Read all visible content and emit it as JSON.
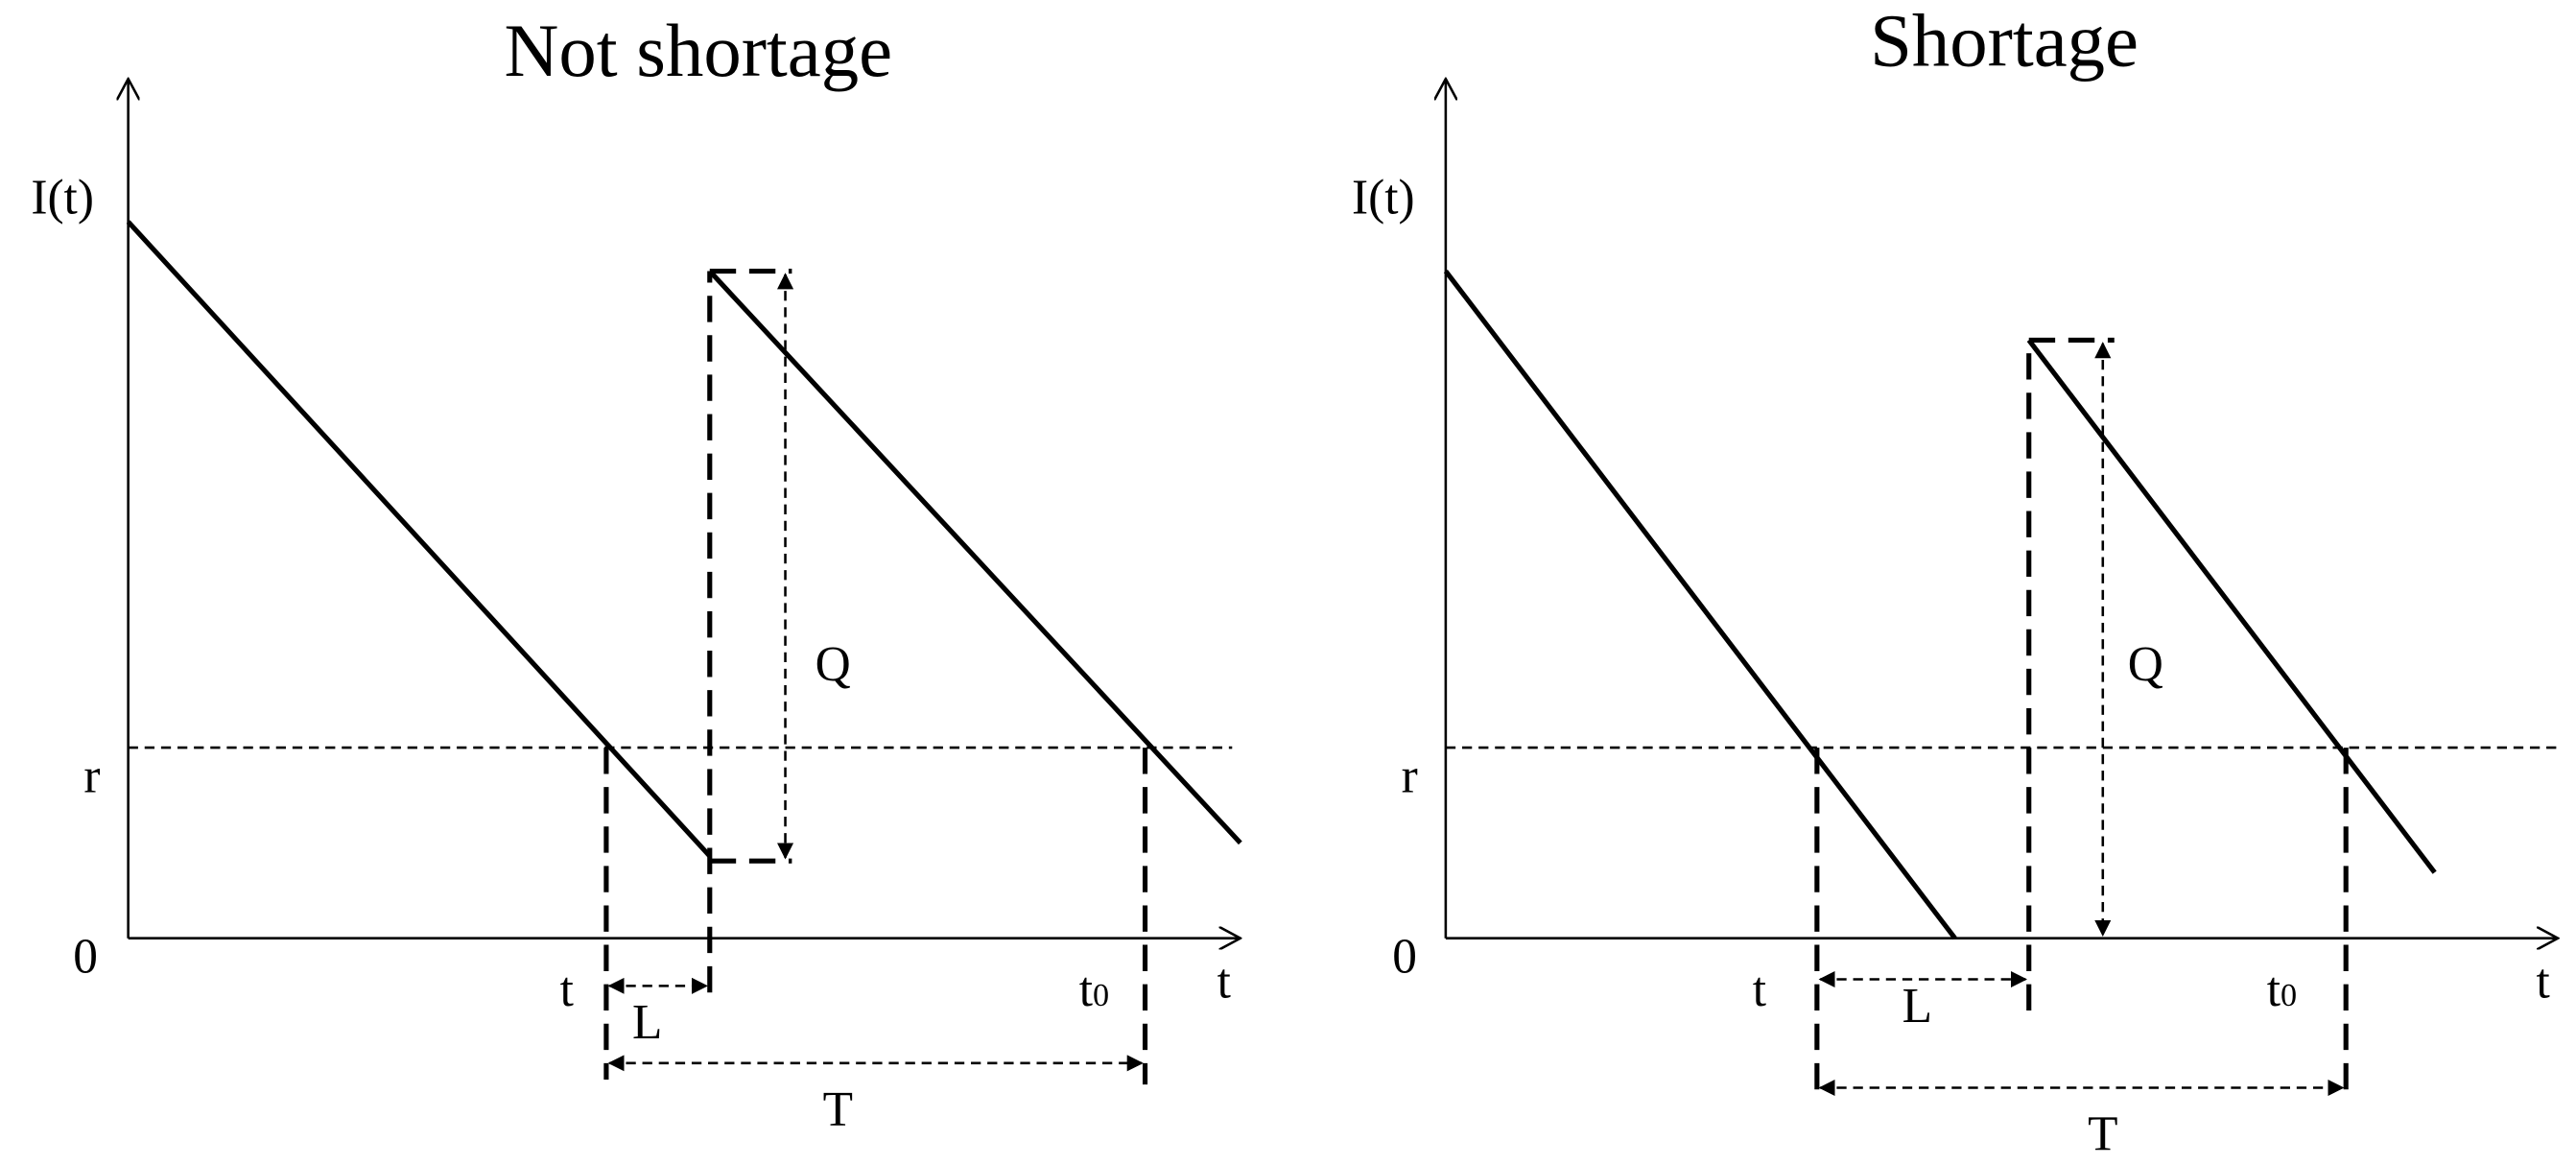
{
  "panels": [
    {
      "title": "Not shortage",
      "y_axis": "I(t)",
      "x_axis": "t",
      "origin": "0",
      "reorder": "r",
      "order_time": "t",
      "arrival_time": {
        "main": "t",
        "sub": "0"
      },
      "lead_time": "L",
      "cycle": "T",
      "quantity": "Q"
    },
    {
      "title": "Shortage",
      "y_axis": "I(t)",
      "x_axis": "t",
      "origin": "0",
      "reorder": "r",
      "order_time": "t",
      "arrival_time": {
        "main": "t",
        "sub": "0"
      },
      "lead_time": "L",
      "cycle": "T",
      "quantity": "Q"
    }
  ]
}
